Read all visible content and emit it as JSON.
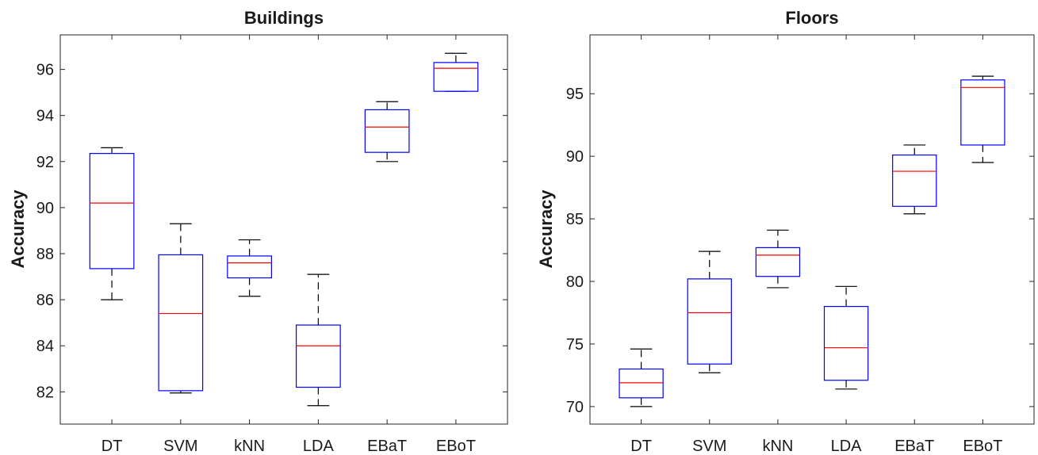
{
  "chart_data": [
    {
      "type": "box",
      "title": "Buildings",
      "ylabel": "Accuracy",
      "xlabel": "",
      "ylim": [
        80.6,
        97.5
      ],
      "yticks": [
        82,
        84,
        86,
        88,
        90,
        92,
        94,
        96
      ],
      "categories": [
        "DT",
        "SVM",
        "kNN",
        "LDA",
        "EBaT",
        "EBoT"
      ],
      "boxes": [
        {
          "min": 86.0,
          "q1": 87.35,
          "median": 90.2,
          "q3": 92.35,
          "max": 92.6
        },
        {
          "min": 81.95,
          "q1": 82.05,
          "median": 85.4,
          "q3": 87.95,
          "max": 89.3
        },
        {
          "min": 86.15,
          "q1": 86.95,
          "median": 87.6,
          "q3": 87.9,
          "max": 88.6
        },
        {
          "min": 81.4,
          "q1": 82.2,
          "median": 84.0,
          "q3": 84.9,
          "max": 87.1
        },
        {
          "min": 92.0,
          "q1": 92.4,
          "median": 93.5,
          "q3": 94.25,
          "max": 94.6
        },
        {
          "min": 95.05,
          "q1": 95.05,
          "median": 96.05,
          "q3": 96.3,
          "max": 96.7
        }
      ],
      "colors": {
        "box": "#0000ff",
        "median": "#ff0000",
        "whisker": "#000000"
      }
    },
    {
      "type": "box",
      "title": "Floors",
      "ylabel": "Accuracy",
      "xlabel": "",
      "ylim": [
        68.6,
        99.7
      ],
      "yticks": [
        70,
        75,
        80,
        85,
        90,
        95
      ],
      "categories": [
        "DT",
        "SVM",
        "kNN",
        "LDA",
        "EBaT",
        "EBoT"
      ],
      "boxes": [
        {
          "min": 70.0,
          "q1": 70.7,
          "median": 71.9,
          "q3": 73.0,
          "max": 74.6
        },
        {
          "min": 72.7,
          "q1": 73.4,
          "median": 77.5,
          "q3": 80.2,
          "max": 82.4
        },
        {
          "min": 79.5,
          "q1": 80.4,
          "median": 82.1,
          "q3": 82.7,
          "max": 84.1
        },
        {
          "min": 71.4,
          "q1": 72.1,
          "median": 74.7,
          "q3": 78.0,
          "max": 79.6
        },
        {
          "min": 85.4,
          "q1": 86.0,
          "median": 88.8,
          "q3": 90.1,
          "max": 90.9
        },
        {
          "min": 89.5,
          "q1": 90.9,
          "median": 95.5,
          "q3": 96.1,
          "max": 96.4
        }
      ],
      "colors": {
        "box": "#0000ff",
        "median": "#ff0000",
        "whisker": "#000000"
      }
    }
  ]
}
